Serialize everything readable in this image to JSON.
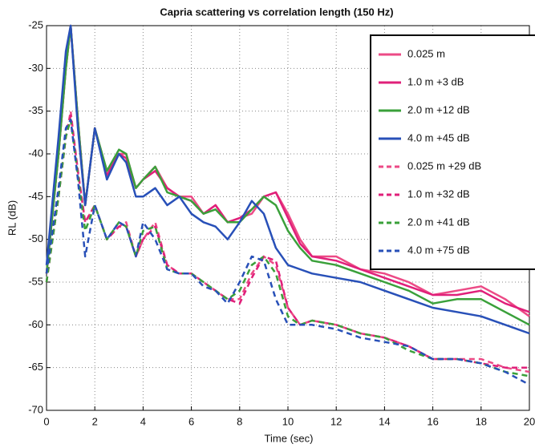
{
  "chart_data": {
    "type": "line",
    "title": "Capria scattering vs correlation length (150 Hz)",
    "xlabel": "Time (sec)",
    "ylabel": "RL (dB)",
    "x": [
      0,
      0.5,
      0.8,
      1,
      1.3,
      1.6,
      2,
      2.5,
      3,
      3.3,
      3.7,
      4,
      4.5,
      5,
      5.5,
      6,
      6.5,
      7,
      7.5,
      8,
      8.5,
      9,
      9.5,
      10,
      10.5,
      11,
      12,
      13,
      14,
      15,
      16,
      17,
      18,
      19,
      20
    ],
    "series": [
      {
        "name": "0.025 m",
        "color": "#ec4a86",
        "linestyle": "solid",
        "values": [
          -54,
          -40,
          -30,
          -25,
          -36,
          -46,
          -37,
          -42,
          -40,
          -40,
          -44,
          -43,
          -41.5,
          -44,
          -45,
          -45,
          -47,
          -46,
          -48,
          -47.5,
          -47,
          -45,
          -44.5,
          -47,
          -50,
          -52,
          -52,
          -53.5,
          -54,
          -55,
          -56.5,
          -56,
          -55.5,
          -57,
          -59
        ]
      },
      {
        "name": "1.0 m +3 dB",
        "color": "#e0207a",
        "linestyle": "solid",
        "values": [
          -54,
          -40,
          -30,
          -25,
          -36,
          -46,
          -37,
          -42.5,
          -40,
          -40.5,
          -44,
          -43,
          -42,
          -44,
          -45,
          -45.5,
          -47,
          -46,
          -48,
          -47.5,
          -46.5,
          -45,
          -44.5,
          -47.5,
          -50.5,
          -52,
          -52.5,
          -53.5,
          -54.5,
          -55.5,
          -56.5,
          -56.5,
          -56,
          -57.5,
          -58.5
        ]
      },
      {
        "name": "2.0 m +12 dB",
        "color": "#3aa03a",
        "linestyle": "solid",
        "values": [
          -54,
          -40,
          -30,
          -25,
          -36,
          -46,
          -37,
          -42,
          -39.5,
          -40,
          -44,
          -43,
          -41.5,
          -44.5,
          -45,
          -45.5,
          -47,
          -46.5,
          -48,
          -48,
          -46.5,
          -45,
          -46,
          -49,
          -51,
          -52.5,
          -53,
          -54,
          -55,
          -56,
          -57.5,
          -57,
          -57,
          -58.5,
          -60
        ]
      },
      {
        "name": "4.0 m +45 dB",
        "color": "#2850b8",
        "linestyle": "solid",
        "values": [
          -53,
          -38,
          -28,
          -25,
          -37,
          -46,
          -37,
          -43,
          -40,
          -41,
          -45,
          -45,
          -44,
          -46,
          -45,
          -47,
          -48,
          -48.5,
          -50,
          -48,
          -45.5,
          -47,
          -51,
          -53,
          -53.5,
          -54,
          -54.5,
          -55,
          -56,
          -57,
          -58,
          -58.5,
          -59,
          -60,
          -61
        ]
      },
      {
        "name": "0.025 m +29 dB",
        "color": "#ec4a86",
        "linestyle": "dashed",
        "values": [
          -55,
          -45,
          -38,
          -35,
          -42,
          -48,
          -46,
          -50,
          -48.5,
          -48,
          -52,
          -50,
          -48,
          -53,
          -54,
          -54,
          -55,
          -56,
          -57,
          -57,
          -54,
          -52,
          -53,
          -58,
          -60,
          -59.5,
          -60,
          -61,
          -61.5,
          -62.5,
          -64,
          -64,
          -64,
          -65,
          -65.5
        ]
      },
      {
        "name": "1.0 m +32 dB",
        "color": "#e0207a",
        "linestyle": "dashed",
        "values": [
          -55,
          -45,
          -38,
          -35.5,
          -42,
          -48,
          -46,
          -50,
          -48.5,
          -48.5,
          -52,
          -50,
          -48.5,
          -53,
          -54,
          -54,
          -55,
          -56,
          -57,
          -57.5,
          -54.5,
          -52,
          -52.5,
          -58,
          -60,
          -59.5,
          -60,
          -61,
          -61.5,
          -62.5,
          -64,
          -64,
          -64.5,
          -65,
          -65
        ]
      },
      {
        "name": "2.0 m +41 dB",
        "color": "#3aa03a",
        "linestyle": "dashed",
        "values": [
          -55,
          -45,
          -38,
          -36,
          -42.5,
          -49,
          -46,
          -50,
          -48,
          -48.5,
          -52,
          -49,
          -48.5,
          -53.5,
          -54,
          -54,
          -55,
          -56,
          -57,
          -56,
          -53,
          -52,
          -54,
          -59,
          -60,
          -59.5,
          -60,
          -61,
          -61.5,
          -63,
          -64,
          -64,
          -64.5,
          -65.5,
          -66
        ]
      },
      {
        "name": "4.0 m +75 dB",
        "color": "#2850b8",
        "linestyle": "dashed",
        "values": [
          -54,
          -44,
          -37,
          -36,
          -43,
          -52,
          -46,
          -50,
          -48,
          -48.5,
          -52,
          -48,
          -50,
          -53.5,
          -54,
          -54,
          -55.5,
          -56,
          -57.5,
          -55,
          -52,
          -52.5,
          -57,
          -60,
          -60,
          -60,
          -60.5,
          -61.5,
          -62,
          -62.5,
          -64,
          -64,
          -64.5,
          -65.5,
          -67
        ]
      }
    ],
    "xlim": [
      0,
      20
    ],
    "xticks": [
      0,
      2,
      4,
      6,
      8,
      10,
      12,
      14,
      16,
      18,
      20
    ],
    "ylim": [
      -70,
      -25
    ],
    "yticks": [
      -70,
      -65,
      -60,
      -55,
      -50,
      -45,
      -40,
      -35,
      -30,
      -25
    ],
    "grid": true,
    "legend": "upper right"
  }
}
